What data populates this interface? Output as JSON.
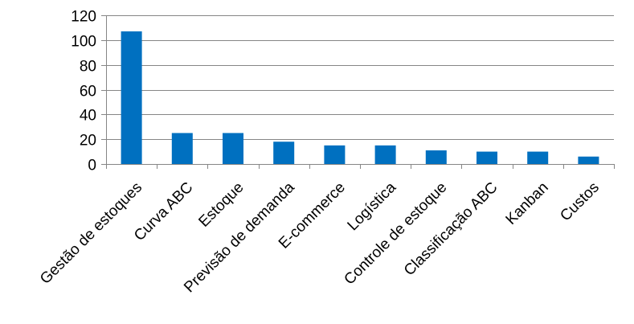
{
  "chart_data": {
    "type": "bar",
    "categories": [
      "Gestão de estoques",
      "Curva ABC",
      "Estoque",
      "Previsão de demanda",
      "E-commerce",
      "Logística",
      "Controle de estoque",
      "Classificação ABC",
      "Kanban",
      "Custos"
    ],
    "values": [
      107,
      25,
      25,
      18,
      15,
      15,
      11,
      10,
      10,
      6
    ],
    "ylim": [
      0,
      120
    ],
    "yticks": [
      0,
      20,
      40,
      60,
      80,
      100,
      120
    ],
    "ytick_labels": [
      "0",
      "20",
      "40",
      "60",
      "80",
      "100",
      "120"
    ],
    "grid": true,
    "legend": "none",
    "colors": {
      "bar": "#0070C0",
      "grid": "#868686",
      "axis": "#868686"
    }
  }
}
